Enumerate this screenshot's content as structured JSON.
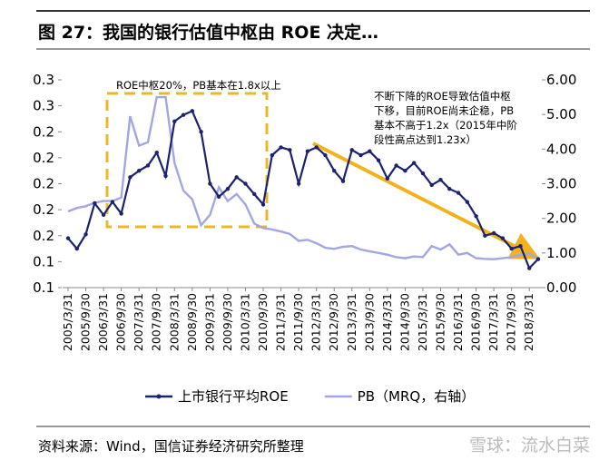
{
  "header": {
    "title": "图 27：我国的银行估值中枢由 ROE 决定…"
  },
  "chart_data": {
    "type": "line",
    "categories": [
      "2005/3/31",
      null,
      "2005/9/30",
      null,
      "2006/3/31",
      null,
      "2006/9/30",
      null,
      "2007/3/31",
      null,
      "2007/9/30",
      null,
      "2008/3/31",
      null,
      "2008/9/30",
      null,
      "2009/3/31",
      null,
      "2009/9/30",
      null,
      "2010/3/31",
      null,
      "2010/9/30",
      null,
      "2011/3/31",
      null,
      "2011/9/30",
      null,
      "2012/3/31",
      null,
      "2012/9/30",
      null,
      "2013/3/31",
      null,
      "2013/9/30",
      null,
      "2014/3/31",
      null,
      "2014/9/30",
      null,
      "2015/3/31",
      null,
      "2015/9/30",
      null,
      "2016/3/31",
      null,
      "2016/9/30",
      null,
      "2017/3/31",
      null,
      "2017/9/30",
      null,
      "2018/3/31",
      null
    ],
    "series": [
      {
        "name": "上市银行平均ROE",
        "color": "#1c2270",
        "markers": true,
        "values": [
          0.158,
          0.15,
          0.161,
          0.185,
          0.176,
          0.186,
          0.177,
          0.205,
          0.21,
          0.214,
          0.224,
          0.206,
          0.248,
          0.253,
          0.256,
          0.24,
          0.2,
          0.19,
          0.196,
          0.205,
          0.2,
          0.192,
          0.184,
          0.222,
          0.228,
          0.226,
          0.2,
          0.225,
          0.228,
          0.222,
          0.21,
          0.202,
          0.226,
          0.222,
          0.225,
          0.218,
          0.204,
          0.214,
          0.21,
          0.216,
          0.208,
          0.199,
          0.203,
          0.196,
          0.193,
          0.186,
          0.175,
          0.16,
          0.162,
          0.158,
          0.15,
          0.152,
          0.135,
          0.142
        ]
      },
      {
        "name": "PB（MRQ，右轴）",
        "color": "#a3a6e2",
        "axis": "y2",
        "markers": false,
        "values": [
          2.2,
          2.3,
          2.35,
          2.45,
          2.5,
          2.5,
          2.6,
          4.95,
          4.1,
          4.2,
          5.5,
          5.5,
          3.6,
          2.8,
          2.55,
          1.8,
          2.1,
          2.9,
          2.5,
          2.7,
          2.4,
          1.85,
          1.72,
          1.68,
          1.62,
          1.55,
          1.35,
          1.38,
          1.28,
          1.15,
          1.12,
          1.18,
          1.2,
          1.1,
          1.05,
          1.0,
          0.95,
          0.88,
          0.85,
          0.9,
          0.88,
          1.2,
          1.1,
          1.25,
          0.95,
          1.0,
          0.85,
          0.83,
          0.82,
          0.85,
          0.88,
          0.95,
          0.98,
          0.82
        ]
      }
    ],
    "ylim": [
      0.12,
      0.28
    ],
    "yticks": [
      {
        "value": 0.12,
        "label": "0.1"
      },
      {
        "value": 0.14,
        "label": "0.1"
      },
      {
        "value": 0.16,
        "label": "0.2"
      },
      {
        "value": 0.18,
        "label": "0.2"
      },
      {
        "value": 0.2,
        "label": "0.2"
      },
      {
        "value": 0.22,
        "label": "0.2"
      },
      {
        "value": 0.24,
        "label": "0.2"
      },
      {
        "value": 0.26,
        "label": "0.3"
      },
      {
        "value": 0.28,
        "label": "0.3"
      }
    ],
    "y2lim": [
      0,
      6
    ],
    "y2ticks": [
      {
        "value": 0,
        "label": "0.00"
      },
      {
        "value": 1,
        "label": "1.00"
      },
      {
        "value": 2,
        "label": "2.00"
      },
      {
        "value": 3,
        "label": "3.00"
      },
      {
        "value": 4,
        "label": "4.00"
      },
      {
        "value": 5,
        "label": "5.00"
      },
      {
        "value": 6,
        "label": "6.00"
      }
    ],
    "grid": false,
    "legend": "bottom",
    "annotations": [
      {
        "lines": [
          "ROE中枢20%，PB基本在1.8x以上"
        ]
      },
      {
        "lines": [
          "不断下降的ROE导致估值中枢",
          "下移，目前ROE尚未企稳，PB",
          "基本不高于1.2x（2015年中阶",
          "段性高点达到1.23x）"
        ]
      }
    ]
  },
  "footer": {
    "source": "资料来源：Wind，国信证券经济研究所整理",
    "watermark": "雪球：流水白菜"
  }
}
